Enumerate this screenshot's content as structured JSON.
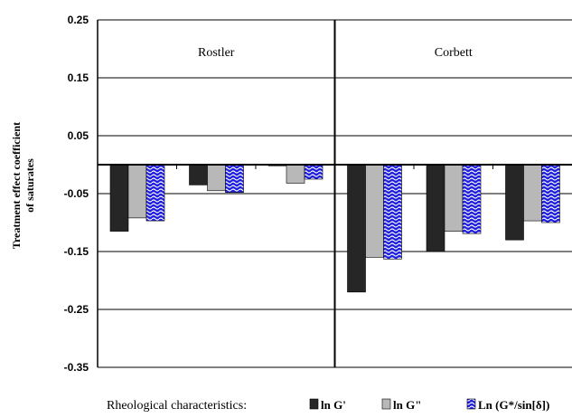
{
  "chart_data": {
    "type": "bar",
    "ylabel_lines": [
      "Treatment effect coefficient",
      "of saturates"
    ],
    "ylim": [
      -0.35,
      0.25
    ],
    "yticks": [
      "0.25",
      "0.15",
      "0.05",
      "-0.05",
      "-0.15",
      "-0.25",
      "-0.35"
    ],
    "ytick_values": [
      0.25,
      0.15,
      0.05,
      -0.05,
      -0.15,
      -0.25,
      -0.35
    ],
    "grid": true,
    "panels": [
      "Rostler",
      "Corbett"
    ],
    "series": [
      {
        "name": "ln G'",
        "color": "#262626",
        "pattern": "solid",
        "values": [
          -0.115,
          -0.035,
          -0.002,
          -0.22,
          -0.15,
          -0.13
        ]
      },
      {
        "name": "ln G\"",
        "color": "#b8b8b8",
        "pattern": "solid",
        "values": [
          -0.092,
          -0.045,
          -0.032,
          -0.16,
          -0.115,
          -0.097
        ]
      },
      {
        "name": "Ln (G*/sin[δ])",
        "color": "#1f1fe0",
        "pattern": "wave",
        "values": [
          -0.097,
          -0.048,
          -0.025,
          -0.163,
          -0.119,
          -0.1
        ]
      }
    ],
    "groups_per_panel": 3,
    "legend": {
      "title": "Rheological characteristics:",
      "placement": "bottom"
    }
  }
}
